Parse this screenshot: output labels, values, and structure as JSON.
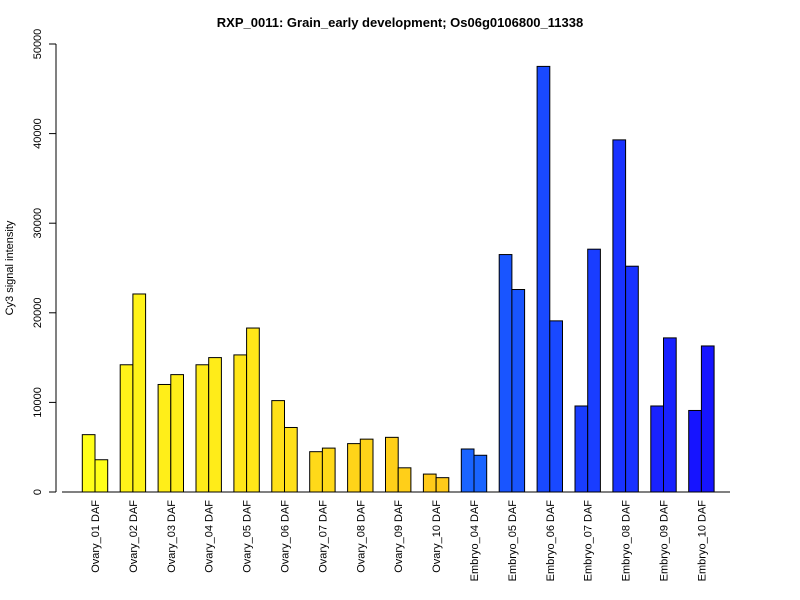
{
  "chart_data": {
    "type": "bar",
    "title": "RXP_0011: Grain_early development; Os06g0106800_11338",
    "xlabel": "",
    "ylabel": "Cy3 signal intensity",
    "ylim": [
      0,
      50000
    ],
    "yticks": [
      0,
      10000,
      20000,
      30000,
      40000,
      50000
    ],
    "grid": false,
    "categories": [
      "Ovary_01 DAF",
      "Ovary_02 DAF",
      "Ovary_03 DAF",
      "Ovary_04 DAF",
      "Ovary_05 DAF",
      "Ovary_06 DAF",
      "Ovary_07 DAF",
      "Ovary_08 DAF",
      "Ovary_09 DAF",
      "Ovary_10 DAF",
      "Embryo_04 DAF",
      "Embryo_05 DAF",
      "Embryo_06 DAF",
      "Embryo_07 DAF",
      "Embryo_08 DAF",
      "Embryo_09 DAF",
      "Embryo_10 DAF"
    ],
    "series": [
      {
        "values": [
          6400,
          14200,
          12000,
          14200,
          15300,
          10200,
          4500,
          5400,
          6100,
          2000,
          4800,
          26500,
          47500,
          9600,
          39300,
          9600,
          9100
        ]
      },
      {
        "values": [
          3600,
          22100,
          13100,
          15000,
          18300,
          7200,
          4900,
          5900,
          2700,
          1600,
          4100,
          22600,
          19100,
          27100,
          25200,
          17200,
          16300
        ]
      }
    ],
    "colors": [
      "#ffff19",
      "#fff319",
      "#ffee19",
      "#ffec19",
      "#ffe619",
      "#ffe019",
      "#ffd919",
      "#ffd419",
      "#ffcf19",
      "#ffca19",
      "#1964ff",
      "#1955ff",
      "#1949ff",
      "#193dff",
      "#1932ff",
      "#1922ff",
      "#1614ff"
    ]
  }
}
